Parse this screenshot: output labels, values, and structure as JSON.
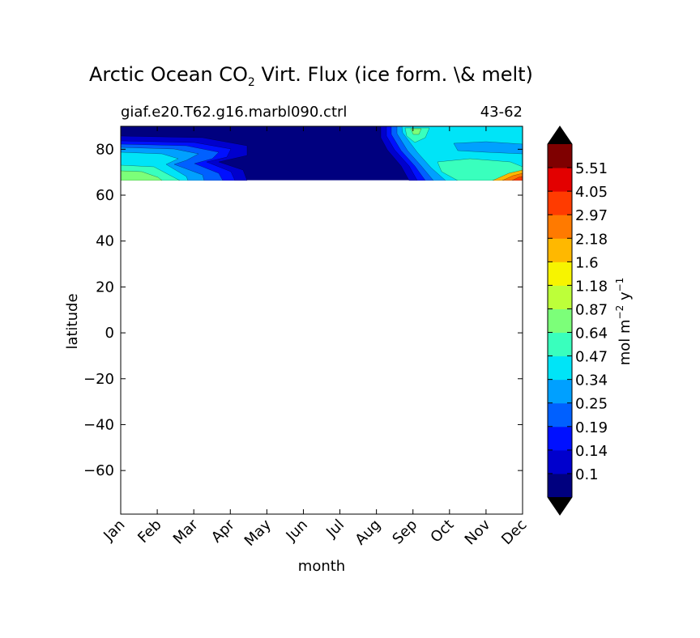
{
  "chart_data": {
    "type": "heatmap",
    "title_prefix": "Arctic Ocean CO",
    "title_subscript": "2",
    "title_suffix": " Virt. Flux (ice form. \\& melt)",
    "subtitle_left": "giaf.e20.T62.g16.marbl090.ctrl",
    "subtitle_right": "43-62",
    "xlabel": "month",
    "ylabel": "latitude",
    "x_categories": [
      "Jan",
      "Feb",
      "Mar",
      "Apr",
      "May",
      "Jun",
      "Jul",
      "Aug",
      "Sep",
      "Oct",
      "Nov",
      "Dec"
    ],
    "y_ticks": [
      80,
      60,
      40,
      20,
      0,
      -20,
      -40,
      -60
    ],
    "ylim": [
      -79,
      90
    ],
    "data_lat_range": [
      66.5,
      90
    ],
    "grid": false,
    "colorbar": {
      "label": "mol m",
      "label_exp1": "−2",
      "label_unit2": " y",
      "label_exp2": "−1",
      "levels": [
        "0.1",
        "0.14",
        "0.19",
        "0.25",
        "0.34",
        "0.47",
        "0.64",
        "0.87",
        "1.18",
        "1.6",
        "2.18",
        "2.97",
        "4.05",
        "5.51"
      ],
      "colors": [
        "#00007f",
        "#0000cd",
        "#0010ff",
        "#0060ff",
        "#00a0ff",
        "#00e4f7",
        "#39ffbd",
        "#7cff79",
        "#bdff39",
        "#f7f400",
        "#ffb800",
        "#ff7a00",
        "#ff3b00",
        "#e30000",
        "#7f0000"
      ],
      "extend": "both"
    },
    "field_colors": {
      "background": "#00007f",
      "band_1": "#0000cd",
      "band_2": "#0010ff",
      "band_3": "#0060ff",
      "band_4": "#00a0ff",
      "band_5": "#00e4f7",
      "band_6": "#39ffbd",
      "band_7": "#7cff79",
      "peak_1": "#ffb800",
      "peak_2": "#ff7a00",
      "peak_3": "#ff3b00"
    }
  }
}
